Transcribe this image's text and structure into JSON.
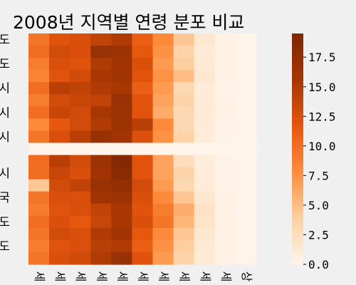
{
  "chart_data": {
    "type": "heatmap",
    "title": "2008년 지역별 연령 분포 비교",
    "row_labels": [
      "도",
      "도",
      "시",
      "시",
      "시",
      "시",
      "국",
      "도",
      "도"
    ],
    "row_label_rows": [
      0,
      2,
      4,
      6,
      8,
      11,
      13,
      15,
      17
    ],
    "col_labels": [
      "세",
      "세",
      "세",
      "세",
      "세",
      "세",
      "세",
      "세",
      "세",
      "세",
      "상"
    ],
    "colorbar": {
      "min": 0,
      "max": 19.5,
      "ticks": [
        0.0,
        2.5,
        5.0,
        7.5,
        10.0,
        12.5,
        15.0,
        17.5
      ],
      "tick_labels": [
        "0.0",
        "2.5",
        "5.0",
        "7.5",
        "10.0",
        "12.5",
        "15.0",
        "17.5"
      ]
    },
    "colors": [
      "#fff5eb",
      "#fdd0a2",
      "#fd8d3c",
      "#e6550d",
      "#a63603",
      "#7f2704"
    ],
    "values": [
      [
        9.5,
        12.0,
        12.5,
        14.0,
        15.0,
        11.0,
        8.0,
        4.5,
        1.5,
        0.3,
        0.1
      ],
      [
        10.0,
        13.0,
        12.5,
        17.0,
        16.5,
        11.5,
        7.5,
        3.5,
        1.2,
        0.3,
        0.1
      ],
      [
        9.0,
        12.5,
        12.0,
        15.0,
        16.0,
        12.5,
        7.0,
        4.0,
        1.3,
        0.3,
        0.1
      ],
      [
        8.5,
        12.0,
        13.0,
        15.5,
        16.0,
        12.0,
        7.5,
        5.0,
        1.5,
        0.3,
        0.1
      ],
      [
        10.0,
        14.5,
        14.0,
        15.0,
        15.5,
        11.0,
        7.0,
        3.0,
        1.0,
        0.2,
        0.1
      ],
      [
        9.0,
        13.0,
        13.5,
        14.0,
        17.0,
        12.0,
        6.5,
        3.5,
        1.2,
        0.3,
        0.1
      ],
      [
        10.0,
        13.5,
        13.0,
        15.5,
        16.5,
        12.0,
        6.0,
        3.0,
        1.2,
        0.3,
        0.1
      ],
      [
        8.0,
        11.5,
        13.0,
        15.0,
        16.5,
        14.5,
        8.0,
        3.0,
        1.0,
        0.2,
        0.1
      ],
      [
        9.5,
        12.5,
        14.5,
        17.0,
        16.0,
        12.5,
        7.5,
        3.5,
        1.0,
        0.2,
        0.1
      ],
      [
        0.0,
        0.0,
        0.0,
        0.0,
        0.0,
        0.0,
        0.0,
        0.0,
        0.0,
        0.0,
        0.0
      ],
      [
        10.0,
        14.5,
        13.0,
        16.5,
        19.0,
        12.0,
        6.5,
        2.5,
        0.8,
        0.2,
        0.1
      ],
      [
        10.0,
        13.5,
        12.5,
        16.0,
        18.5,
        12.0,
        6.5,
        3.5,
        1.0,
        0.2,
        0.1
      ],
      [
        4.5,
        13.0,
        14.0,
        17.0,
        17.5,
        13.0,
        7.0,
        3.0,
        1.0,
        0.2,
        0.1
      ],
      [
        9.5,
        12.5,
        12.5,
        16.0,
        16.5,
        12.5,
        8.0,
        4.5,
        1.5,
        0.3,
        0.1
      ],
      [
        9.0,
        12.0,
        12.5,
        14.0,
        15.5,
        12.0,
        9.0,
        6.0,
        2.0,
        0.4,
        0.1
      ],
      [
        10.0,
        12.5,
        11.5,
        13.5,
        15.5,
        12.5,
        9.5,
        5.5,
        1.8,
        0.4,
        0.1
      ],
      [
        9.5,
        13.0,
        12.5,
        15.0,
        16.0,
        11.5,
        8.0,
        4.5,
        1.5,
        0.3,
        0.1
      ],
      [
        9.0,
        12.0,
        12.5,
        14.5,
        15.0,
        11.0,
        7.5,
        4.0,
        1.3,
        0.3,
        0.1
      ],
      [
        9.5,
        12.5,
        13.0,
        15.0,
        17.0,
        12.0,
        7.0,
        3.5,
        1.2,
        0.3,
        0.1
      ]
    ]
  }
}
